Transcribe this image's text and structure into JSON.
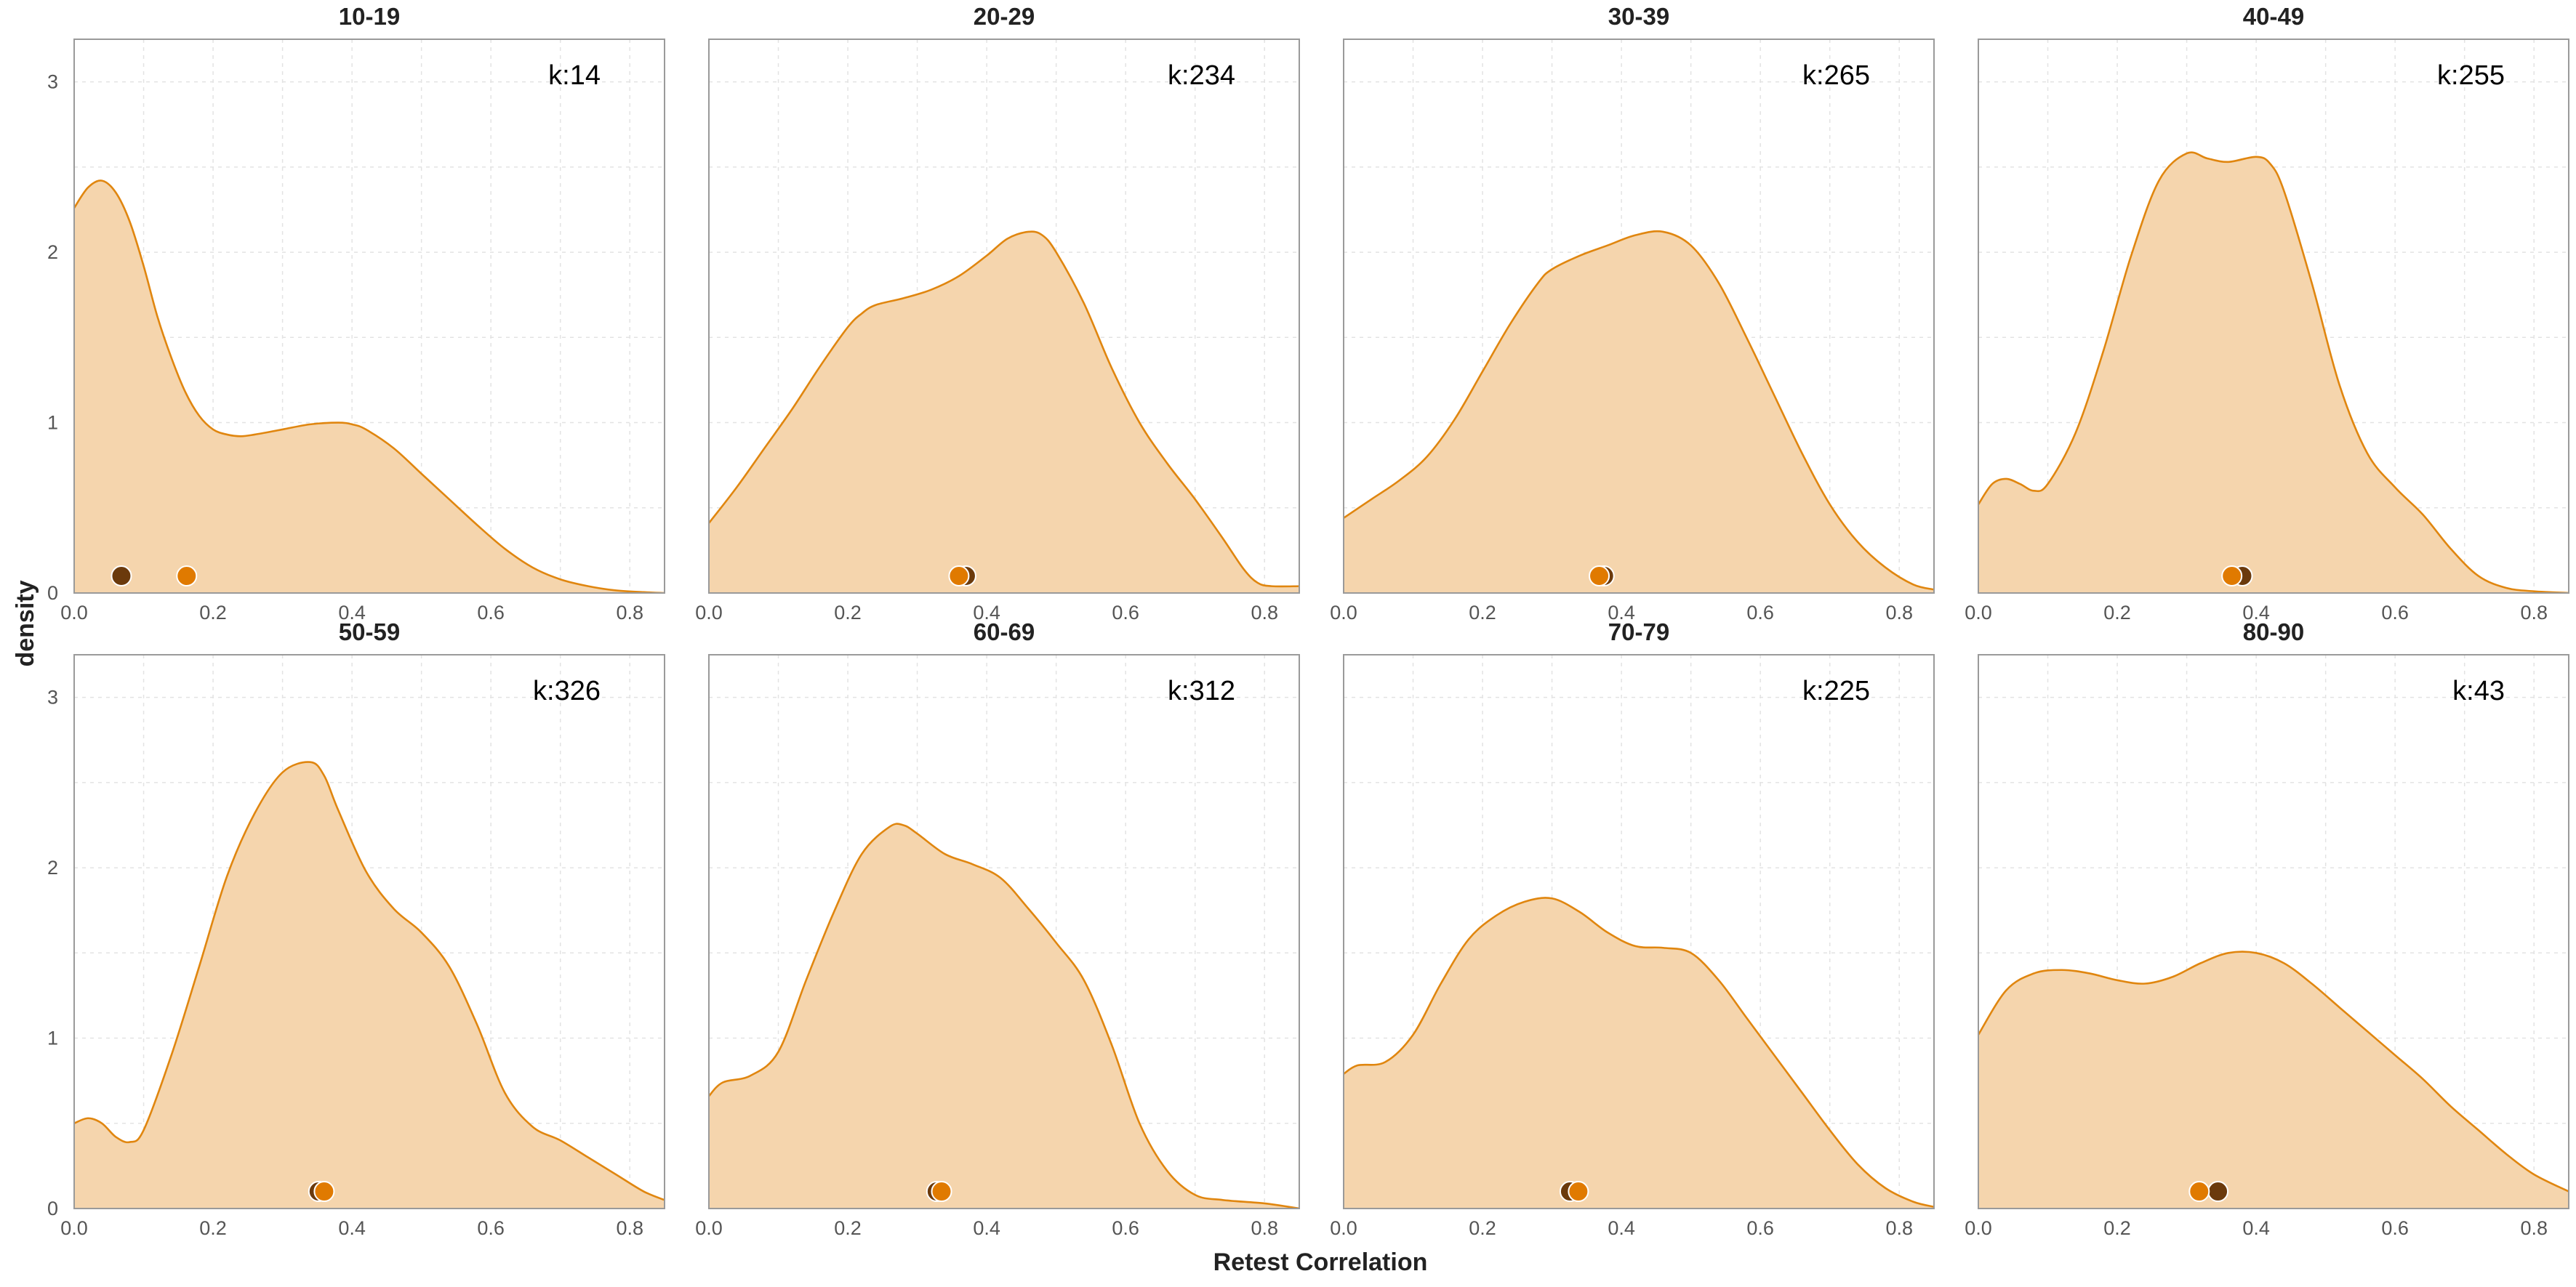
{
  "chart_data": {
    "type": "area",
    "subtype": "faceted density plot",
    "xlabel": "Retest Correlation",
    "ylabel": "density",
    "xlim": [
      0,
      0.85
    ],
    "ylim": [
      0,
      3.25
    ],
    "xticks": [
      "0.0",
      "0.2",
      "0.4",
      "0.6",
      "0.8"
    ],
    "xtick_values": [
      0,
      0.2,
      0.4,
      0.6,
      0.8
    ],
    "yticks": [
      "0",
      "1",
      "2",
      "3"
    ],
    "ytick_values": [
      0,
      1,
      2,
      3
    ],
    "grid": true,
    "colors": {
      "fill": "#f5d5ad",
      "line": "#e0860f",
      "point_dark": "#6b3a0c",
      "point_light": "#e07a00",
      "border": "#9a9a9a",
      "grid": "#e3e3e3"
    },
    "panels": [
      {
        "title": "10-19",
        "k_label": "k:14",
        "points": [
          0.068,
          0.162
        ],
        "density": [
          [
            0,
            2.26
          ],
          [
            0.02,
            2.38
          ],
          [
            0.04,
            2.42
          ],
          [
            0.06,
            2.35
          ],
          [
            0.08,
            2.18
          ],
          [
            0.1,
            1.92
          ],
          [
            0.12,
            1.62
          ],
          [
            0.14,
            1.38
          ],
          [
            0.16,
            1.18
          ],
          [
            0.18,
            1.04
          ],
          [
            0.2,
            0.96
          ],
          [
            0.22,
            0.93
          ],
          [
            0.24,
            0.92
          ],
          [
            0.26,
            0.93
          ],
          [
            0.3,
            0.96
          ],
          [
            0.34,
            0.99
          ],
          [
            0.38,
            1.0
          ],
          [
            0.4,
            0.99
          ],
          [
            0.42,
            0.96
          ],
          [
            0.46,
            0.85
          ],
          [
            0.5,
            0.7
          ],
          [
            0.54,
            0.55
          ],
          [
            0.58,
            0.4
          ],
          [
            0.62,
            0.26
          ],
          [
            0.66,
            0.15
          ],
          [
            0.7,
            0.08
          ],
          [
            0.74,
            0.04
          ],
          [
            0.78,
            0.015
          ],
          [
            0.82,
            0.005
          ],
          [
            0.85,
            0.0
          ]
        ]
      },
      {
        "title": "20-29",
        "k_label": "k:234",
        "points": [
          0.37,
          0.36
        ],
        "density": [
          [
            0,
            0.41
          ],
          [
            0.04,
            0.62
          ],
          [
            0.08,
            0.85
          ],
          [
            0.12,
            1.08
          ],
          [
            0.16,
            1.33
          ],
          [
            0.2,
            1.56
          ],
          [
            0.22,
            1.64
          ],
          [
            0.24,
            1.69
          ],
          [
            0.28,
            1.73
          ],
          [
            0.32,
            1.78
          ],
          [
            0.36,
            1.86
          ],
          [
            0.4,
            1.98
          ],
          [
            0.43,
            2.08
          ],
          [
            0.46,
            2.12
          ],
          [
            0.48,
            2.1
          ],
          [
            0.5,
            2.0
          ],
          [
            0.54,
            1.7
          ],
          [
            0.58,
            1.32
          ],
          [
            0.62,
            1.0
          ],
          [
            0.66,
            0.76
          ],
          [
            0.7,
            0.55
          ],
          [
            0.74,
            0.32
          ],
          [
            0.77,
            0.14
          ],
          [
            0.79,
            0.06
          ],
          [
            0.81,
            0.04
          ],
          [
            0.85,
            0.04
          ]
        ]
      },
      {
        "title": "30-39",
        "k_label": "k:265",
        "points": [
          0.375,
          0.368
        ],
        "density": [
          [
            0,
            0.44
          ],
          [
            0.04,
            0.55
          ],
          [
            0.08,
            0.66
          ],
          [
            0.12,
            0.8
          ],
          [
            0.16,
            1.02
          ],
          [
            0.2,
            1.3
          ],
          [
            0.24,
            1.58
          ],
          [
            0.28,
            1.82
          ],
          [
            0.3,
            1.9
          ],
          [
            0.34,
            1.98
          ],
          [
            0.38,
            2.04
          ],
          [
            0.42,
            2.1
          ],
          [
            0.46,
            2.12
          ],
          [
            0.5,
            2.04
          ],
          [
            0.54,
            1.82
          ],
          [
            0.58,
            1.5
          ],
          [
            0.62,
            1.16
          ],
          [
            0.66,
            0.82
          ],
          [
            0.7,
            0.52
          ],
          [
            0.74,
            0.3
          ],
          [
            0.78,
            0.15
          ],
          [
            0.82,
            0.05
          ],
          [
            0.85,
            0.02
          ]
        ]
      },
      {
        "title": "40-49",
        "k_label": "k:255",
        "points": [
          0.38,
          0.365
        ],
        "density": [
          [
            0,
            0.52
          ],
          [
            0.02,
            0.64
          ],
          [
            0.04,
            0.67
          ],
          [
            0.06,
            0.64
          ],
          [
            0.08,
            0.6
          ],
          [
            0.1,
            0.64
          ],
          [
            0.14,
            0.94
          ],
          [
            0.18,
            1.42
          ],
          [
            0.22,
            1.98
          ],
          [
            0.26,
            2.42
          ],
          [
            0.3,
            2.58
          ],
          [
            0.33,
            2.55
          ],
          [
            0.36,
            2.53
          ],
          [
            0.4,
            2.56
          ],
          [
            0.42,
            2.52
          ],
          [
            0.44,
            2.36
          ],
          [
            0.48,
            1.82
          ],
          [
            0.52,
            1.22
          ],
          [
            0.56,
            0.82
          ],
          [
            0.6,
            0.62
          ],
          [
            0.64,
            0.46
          ],
          [
            0.68,
            0.26
          ],
          [
            0.72,
            0.1
          ],
          [
            0.76,
            0.03
          ],
          [
            0.8,
            0.01
          ],
          [
            0.85,
            0.0
          ]
        ]
      },
      {
        "title": "50-59",
        "k_label": "k:326",
        "points": [
          0.352,
          0.36
        ],
        "density": [
          [
            0,
            0.5
          ],
          [
            0.02,
            0.53
          ],
          [
            0.04,
            0.5
          ],
          [
            0.06,
            0.42
          ],
          [
            0.08,
            0.39
          ],
          [
            0.1,
            0.46
          ],
          [
            0.14,
            0.9
          ],
          [
            0.18,
            1.42
          ],
          [
            0.22,
            1.95
          ],
          [
            0.26,
            2.32
          ],
          [
            0.3,
            2.56
          ],
          [
            0.34,
            2.62
          ],
          [
            0.36,
            2.54
          ],
          [
            0.38,
            2.34
          ],
          [
            0.42,
            1.98
          ],
          [
            0.46,
            1.76
          ],
          [
            0.5,
            1.62
          ],
          [
            0.54,
            1.42
          ],
          [
            0.58,
            1.08
          ],
          [
            0.62,
            0.68
          ],
          [
            0.66,
            0.48
          ],
          [
            0.7,
            0.4
          ],
          [
            0.74,
            0.3
          ],
          [
            0.78,
            0.2
          ],
          [
            0.82,
            0.1
          ],
          [
            0.85,
            0.05
          ]
        ]
      },
      {
        "title": "60-69",
        "k_label": "k:312",
        "points": [
          0.328,
          0.335
        ],
        "density": [
          [
            0,
            0.66
          ],
          [
            0.02,
            0.74
          ],
          [
            0.06,
            0.78
          ],
          [
            0.1,
            0.92
          ],
          [
            0.14,
            1.34
          ],
          [
            0.18,
            1.74
          ],
          [
            0.22,
            2.08
          ],
          [
            0.26,
            2.24
          ],
          [
            0.28,
            2.25
          ],
          [
            0.3,
            2.2
          ],
          [
            0.34,
            2.08
          ],
          [
            0.38,
            2.02
          ],
          [
            0.42,
            1.94
          ],
          [
            0.46,
            1.76
          ],
          [
            0.5,
            1.56
          ],
          [
            0.54,
            1.34
          ],
          [
            0.58,
            0.96
          ],
          [
            0.62,
            0.5
          ],
          [
            0.66,
            0.22
          ],
          [
            0.7,
            0.08
          ],
          [
            0.74,
            0.05
          ],
          [
            0.8,
            0.03
          ],
          [
            0.85,
            0.0
          ]
        ]
      },
      {
        "title": "70-79",
        "k_label": "k:225",
        "points": [
          0.326,
          0.338
        ],
        "density": [
          [
            0,
            0.79
          ],
          [
            0.02,
            0.84
          ],
          [
            0.06,
            0.86
          ],
          [
            0.1,
            1.02
          ],
          [
            0.14,
            1.32
          ],
          [
            0.18,
            1.58
          ],
          [
            0.22,
            1.72
          ],
          [
            0.26,
            1.8
          ],
          [
            0.3,
            1.82
          ],
          [
            0.34,
            1.74
          ],
          [
            0.38,
            1.62
          ],
          [
            0.42,
            1.54
          ],
          [
            0.46,
            1.53
          ],
          [
            0.5,
            1.5
          ],
          [
            0.54,
            1.34
          ],
          [
            0.58,
            1.12
          ],
          [
            0.62,
            0.9
          ],
          [
            0.66,
            0.68
          ],
          [
            0.7,
            0.46
          ],
          [
            0.74,
            0.26
          ],
          [
            0.78,
            0.12
          ],
          [
            0.82,
            0.04
          ],
          [
            0.85,
            0.01
          ]
        ]
      },
      {
        "title": "80-90",
        "k_label": "k:43",
        "points": [
          0.345,
          0.318
        ],
        "density": [
          [
            0,
            1.02
          ],
          [
            0.04,
            1.28
          ],
          [
            0.08,
            1.38
          ],
          [
            0.12,
            1.4
          ],
          [
            0.16,
            1.38
          ],
          [
            0.2,
            1.34
          ],
          [
            0.24,
            1.32
          ],
          [
            0.28,
            1.36
          ],
          [
            0.32,
            1.44
          ],
          [
            0.36,
            1.5
          ],
          [
            0.4,
            1.5
          ],
          [
            0.44,
            1.44
          ],
          [
            0.48,
            1.32
          ],
          [
            0.52,
            1.18
          ],
          [
            0.56,
            1.04
          ],
          [
            0.6,
            0.9
          ],
          [
            0.64,
            0.76
          ],
          [
            0.68,
            0.6
          ],
          [
            0.72,
            0.46
          ],
          [
            0.76,
            0.32
          ],
          [
            0.8,
            0.2
          ],
          [
            0.85,
            0.1
          ]
        ]
      }
    ]
  }
}
